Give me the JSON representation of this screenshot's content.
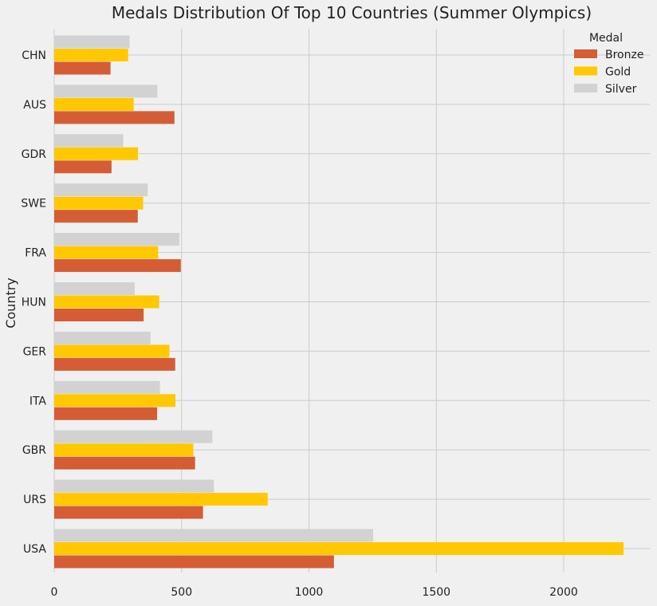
{
  "chart_data": {
    "type": "bar",
    "orientation": "horizontal",
    "title": "Medals Distribution Of Top 10 Countries (Summer Olympics)",
    "xlabel": "",
    "ylabel": "Country",
    "xlim": [
      0,
      2350
    ],
    "x_ticks": [
      0,
      500,
      1000,
      1500,
      2000
    ],
    "x_tick_labels": [
      "0",
      "500",
      "1000",
      "1500",
      "2000"
    ],
    "grid": true,
    "legend_title": "Medal",
    "legend_position": "top-right",
    "categories": [
      "CHN",
      "AUS",
      "GDR",
      "SWE",
      "FRA",
      "HUN",
      "GER",
      "ITA",
      "GBR",
      "URS",
      "USA"
    ],
    "series": [
      {
        "name": "Bronze",
        "color": "#d45d35",
        "values": [
          221,
          472,
          225,
          328,
          497,
          351,
          475,
          404,
          553,
          584,
          1098
        ]
      },
      {
        "name": "Gold",
        "color": "#ffc800",
        "values": [
          290,
          312,
          329,
          349,
          408,
          412,
          452,
          476,
          546,
          838,
          2235
        ]
      },
      {
        "name": "Silver",
        "color": "#d2d2d2",
        "values": [
          296,
          405,
          271,
          367,
          491,
          316,
          378,
          415,
          621,
          627,
          1252
        ]
      }
    ]
  }
}
